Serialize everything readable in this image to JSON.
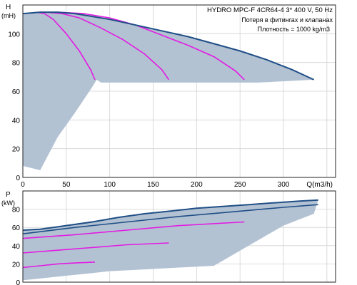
{
  "colors": {
    "region": "#b3c2d3",
    "curve": "#1f4e86",
    "system": "#e21be2",
    "grid": "#d2d2d2",
    "frame": "#222222"
  },
  "chart_data": [
    {
      "type": "line",
      "title": "HYDRO MPC-F 4CR64-4    3* 400 V, 50 Hz",
      "notes": [
        "Потеря в фитингах и клапанах",
        "Плотность = 1000 kg/m3"
      ],
      "ylabel": "H",
      "yunit": "(mH)",
      "xlabel": "Q(m3/h)",
      "xlim": [
        0,
        360
      ],
      "ylim": [
        0,
        120
      ],
      "xticks": [
        0,
        50,
        100,
        150,
        200,
        250,
        300
      ],
      "yticks": [
        0,
        20,
        40,
        60,
        80,
        100
      ],
      "grid": true,
      "operating_range": {
        "upper_x": [
          0,
          20,
          40,
          60,
          80,
          100,
          130,
          160,
          190,
          220,
          250,
          280,
          310,
          335
        ],
        "upper_y": [
          114,
          115,
          115,
          114,
          112,
          110,
          106,
          102,
          98,
          93,
          88,
          82,
          75,
          68
        ],
        "lower_x": [
          0,
          20,
          40,
          60,
          80,
          85,
          90,
          140,
          200,
          270,
          335
        ],
        "lower_y": [
          8,
          5,
          28,
          45,
          63,
          68,
          66,
          66,
          66,
          66,
          68
        ]
      },
      "series": [
        {
          "x": [
            15,
            25,
            35,
            50,
            65,
            78,
            83
          ],
          "y": [
            115,
            114,
            110,
            100,
            88,
            75,
            68
          ]
        },
        {
          "x": [
            25,
            45,
            65,
            90,
            115,
            140,
            160,
            168
          ],
          "y": [
            115,
            114,
            111,
            104,
            96,
            86,
            75,
            68
          ]
        },
        {
          "x": [
            40,
            70,
            100,
            130,
            160,
            190,
            220,
            245,
            255
          ],
          "y": [
            115,
            114,
            111,
            106,
            99,
            92,
            84,
            74,
            68
          ]
        },
        {
          "x": [
            0,
            20,
            40,
            60,
            80,
            100,
            130,
            160,
            190,
            220,
            250,
            280,
            310,
            335
          ],
          "y": [
            114,
            115,
            115,
            114,
            112,
            110,
            106,
            102,
            98,
            93,
            88,
            82,
            75,
            68
          ]
        }
      ]
    },
    {
      "type": "line",
      "ylabel": "P",
      "yunit": "(kW)",
      "xlim": [
        0,
        360
      ],
      "ylim": [
        0,
        100
      ],
      "yticks": [
        0,
        20,
        40,
        60,
        80
      ],
      "grid": true,
      "operating_range": {
        "upper_x": [
          0,
          20,
          50,
          80,
          110,
          140,
          170,
          200,
          230,
          260,
          290,
          320,
          340
        ],
        "upper_y": [
          57,
          58,
          62,
          66,
          71,
          75,
          78,
          81,
          83,
          85,
          87,
          89,
          90
        ],
        "lower_x": [
          0,
          20,
          40,
          60,
          80,
          100,
          140,
          180,
          220,
          260,
          300,
          335
        ],
        "lower_y": [
          2,
          4,
          6,
          8,
          10,
          12,
          14,
          16,
          18,
          40,
          62,
          75
        ]
      },
      "series": [
        {
          "x": [
            0,
            20,
            40,
            60,
            83
          ],
          "y": [
            16,
            18,
            20,
            21,
            22
          ]
        },
        {
          "x": [
            0,
            40,
            80,
            120,
            168
          ],
          "y": [
            32,
            35,
            38,
            41,
            43
          ]
        },
        {
          "x": [
            0,
            60,
            120,
            180,
            255
          ],
          "y": [
            48,
            52,
            57,
            62,
            66
          ]
        },
        {
          "x": [
            0,
            60,
            120,
            180,
            240,
            300,
            340
          ],
          "y": [
            53,
            60,
            66,
            72,
            77,
            82,
            85
          ]
        },
        {
          "x": [
            0,
            20,
            50,
            80,
            110,
            140,
            170,
            200,
            230,
            260,
            290,
            320,
            340
          ],
          "y": [
            57,
            58,
            62,
            66,
            71,
            75,
            78,
            81,
            83,
            85,
            87,
            89,
            90
          ]
        }
      ]
    }
  ]
}
